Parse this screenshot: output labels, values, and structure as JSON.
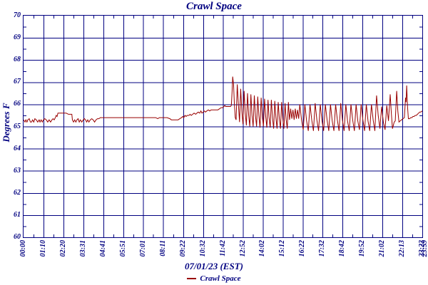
{
  "title": "Crawl Space",
  "colors": {
    "axis": "#000080",
    "series": "#990000",
    "background": "#ffffff"
  },
  "y_axis": {
    "label": "Degrees F",
    "min": 60,
    "max": 70,
    "tick_step": 1,
    "minor_tick_step": 0.5,
    "tick_labels": [
      "70",
      "69",
      "68",
      "67",
      "66",
      "65",
      "64",
      "63",
      "62",
      "61",
      "60"
    ]
  },
  "x_axis": {
    "title": "07/01/23 (EST)",
    "tick_labels": [
      "00:00",
      "01:10",
      "02:20",
      "03:31",
      "04:41",
      "05:51",
      "07:01",
      "08:11",
      "09:22",
      "10:32",
      "11:42",
      "12:52",
      "14:02",
      "15:12",
      "16:22",
      "17:32",
      "18:42",
      "19:52",
      "21:02",
      "22:13",
      "23:23"
    ],
    "end_overlap_label": "23:59",
    "minor_ticks": "midpoints"
  },
  "legend": {
    "items": [
      {
        "label": "Crawl Space",
        "color": "#990000"
      }
    ]
  },
  "chart_data": {
    "type": "line",
    "title": "Crawl Space",
    "xlabel": "07/01/23 (EST)",
    "ylabel": "Degrees F",
    "ylim": [
      60,
      70
    ],
    "x_unit": "minutes since 00:00",
    "y_unit": "degrees F",
    "grid": true,
    "legend_position": "bottom",
    "series": [
      {
        "name": "Crawl Space",
        "color": "#990000",
        "points": [
          [
            0,
            65.3
          ],
          [
            5,
            65.2
          ],
          [
            8,
            65.3
          ],
          [
            12,
            65.2
          ],
          [
            15,
            65.3
          ],
          [
            20,
            65.35
          ],
          [
            24,
            65.2
          ],
          [
            28,
            65.2
          ],
          [
            32,
            65.3
          ],
          [
            36,
            65.2
          ],
          [
            40,
            65.35
          ],
          [
            45,
            65.3
          ],
          [
            50,
            65.2
          ],
          [
            55,
            65.3
          ],
          [
            58,
            65.2
          ],
          [
            62,
            65.3
          ],
          [
            66,
            65.2
          ],
          [
            70,
            65.3
          ],
          [
            75,
            65.35
          ],
          [
            80,
            65.3
          ],
          [
            85,
            65.2
          ],
          [
            90,
            65.3
          ],
          [
            95,
            65.2
          ],
          [
            100,
            65.3
          ],
          [
            104,
            65.35
          ],
          [
            108,
            65.3
          ],
          [
            112,
            65.4
          ],
          [
            115,
            65.5
          ],
          [
            118,
            65.45
          ],
          [
            121,
            65.6
          ],
          [
            126,
            65.6
          ],
          [
            134,
            65.6
          ],
          [
            142,
            65.6
          ],
          [
            150,
            65.6
          ],
          [
            158,
            65.55
          ],
          [
            165,
            65.55
          ],
          [
            170,
            65.55
          ],
          [
            172,
            65.3
          ],
          [
            176,
            65.2
          ],
          [
            180,
            65.3
          ],
          [
            184,
            65.2
          ],
          [
            188,
            65.3
          ],
          [
            192,
            65.35
          ],
          [
            196,
            65.2
          ],
          [
            200,
            65.3
          ],
          [
            205,
            65.2
          ],
          [
            210,
            65.3
          ],
          [
            214,
            65.35
          ],
          [
            218,
            65.3
          ],
          [
            222,
            65.2
          ],
          [
            226,
            65.3
          ],
          [
            230,
            65.2
          ],
          [
            235,
            65.3
          ],
          [
            240,
            65.35
          ],
          [
            245,
            65.3
          ],
          [
            250,
            65.2
          ],
          [
            255,
            65.3
          ],
          [
            260,
            65.35
          ],
          [
            265,
            65.35
          ],
          [
            270,
            65.4
          ],
          [
            285,
            65.4
          ],
          [
            300,
            65.4
          ],
          [
            315,
            65.4
          ],
          [
            330,
            65.4
          ],
          [
            345,
            65.4
          ],
          [
            360,
            65.4
          ],
          [
            375,
            65.4
          ],
          [
            390,
            65.4
          ],
          [
            405,
            65.4
          ],
          [
            420,
            65.4
          ],
          [
            435,
            65.4
          ],
          [
            450,
            65.4
          ],
          [
            465,
            65.4
          ],
          [
            472,
            65.35
          ],
          [
            478,
            65.4
          ],
          [
            492,
            65.4
          ],
          [
            505,
            65.4
          ],
          [
            515,
            65.35
          ],
          [
            520,
            65.3
          ],
          [
            528,
            65.3
          ],
          [
            536,
            65.3
          ],
          [
            544,
            65.3
          ],
          [
            550,
            65.35
          ],
          [
            556,
            65.4
          ],
          [
            560,
            65.45
          ],
          [
            564,
            65.4
          ],
          [
            568,
            65.5
          ],
          [
            572,
            65.45
          ],
          [
            576,
            65.5
          ],
          [
            582,
            65.5
          ],
          [
            586,
            65.55
          ],
          [
            590,
            65.5
          ],
          [
            595,
            65.55
          ],
          [
            600,
            65.6
          ],
          [
            606,
            65.55
          ],
          [
            610,
            65.6
          ],
          [
            615,
            65.65
          ],
          [
            620,
            65.6
          ],
          [
            624,
            65.7
          ],
          [
            628,
            65.6
          ],
          [
            632,
            65.65
          ],
          [
            636,
            65.7
          ],
          [
            640,
            65.65
          ],
          [
            645,
            65.7
          ],
          [
            650,
            65.75
          ],
          [
            655,
            65.7
          ],
          [
            660,
            65.75
          ],
          [
            668,
            65.75
          ],
          [
            676,
            65.75
          ],
          [
            684,
            65.75
          ],
          [
            690,
            65.8
          ],
          [
            695,
            65.85
          ],
          [
            700,
            65.85
          ],
          [
            705,
            65.9
          ],
          [
            708,
            65.95
          ],
          [
            711,
            65.9
          ],
          [
            716,
            65.9
          ],
          [
            722,
            65.9
          ],
          [
            728,
            65.9
          ],
          [
            731,
            65.95
          ],
          [
            734,
            66.6
          ],
          [
            736,
            67.25
          ],
          [
            739,
            66.9
          ],
          [
            742,
            66.0
          ],
          [
            745,
            65.4
          ],
          [
            748,
            65.3
          ],
          [
            752,
            66.9
          ],
          [
            756,
            66.0
          ],
          [
            760,
            65.2
          ],
          [
            764,
            66.7
          ],
          [
            768,
            65.7
          ],
          [
            772,
            65.1
          ],
          [
            776,
            66.6
          ],
          [
            780,
            65.6
          ],
          [
            784,
            65.05
          ],
          [
            788,
            66.5
          ],
          [
            792,
            65.5
          ],
          [
            796,
            65.0
          ],
          [
            800,
            66.45
          ],
          [
            804,
            65.5
          ],
          [
            808,
            65.0
          ],
          [
            812,
            66.4
          ],
          [
            816,
            65.5
          ],
          [
            820,
            65.0
          ],
          [
            824,
            66.35
          ],
          [
            828,
            65.5
          ],
          [
            832,
            64.95
          ],
          [
            836,
            66.3
          ],
          [
            840,
            65.45
          ],
          [
            844,
            65.0
          ],
          [
            848,
            66.25
          ],
          [
            852,
            65.45
          ],
          [
            856,
            64.95
          ],
          [
            860,
            66.2
          ],
          [
            864,
            65.4
          ],
          [
            868,
            64.95
          ],
          [
            872,
            66.2
          ],
          [
            876,
            65.4
          ],
          [
            880,
            64.9
          ],
          [
            884,
            66.15
          ],
          [
            888,
            65.4
          ],
          [
            892,
            64.9
          ],
          [
            896,
            66.1
          ],
          [
            900,
            65.35
          ],
          [
            904,
            64.9
          ],
          [
            908,
            66.1
          ],
          [
            912,
            65.35
          ],
          [
            916,
            64.9
          ],
          [
            920,
            66.05
          ],
          [
            924,
            65.3
          ],
          [
            928,
            64.9
          ],
          [
            932,
            66.1
          ],
          [
            936,
            65.3
          ],
          [
            940,
            65.8
          ],
          [
            944,
            65.35
          ],
          [
            948,
            65.75
          ],
          [
            952,
            65.3
          ],
          [
            956,
            65.8
          ],
          [
            960,
            65.35
          ],
          [
            964,
            65.75
          ],
          [
            968,
            65.35
          ],
          [
            972,
            66.0
          ],
          [
            978,
            65.3
          ],
          [
            984,
            64.85
          ],
          [
            990,
            66.0
          ],
          [
            996,
            65.25
          ],
          [
            1002,
            64.8
          ],
          [
            1008,
            66.0
          ],
          [
            1014,
            65.3
          ],
          [
            1020,
            64.8
          ],
          [
            1026,
            66.05
          ],
          [
            1032,
            65.3
          ],
          [
            1038,
            64.8
          ],
          [
            1044,
            66.0
          ],
          [
            1050,
            65.25
          ],
          [
            1056,
            64.8
          ],
          [
            1062,
            66.0
          ],
          [
            1068,
            65.3
          ],
          [
            1074,
            64.8
          ],
          [
            1080,
            66.0
          ],
          [
            1086,
            65.25
          ],
          [
            1092,
            64.8
          ],
          [
            1098,
            66.0
          ],
          [
            1104,
            65.3
          ],
          [
            1110,
            64.8
          ],
          [
            1116,
            66.05
          ],
          [
            1122,
            65.3
          ],
          [
            1128,
            64.8
          ],
          [
            1134,
            66.0
          ],
          [
            1140,
            65.25
          ],
          [
            1146,
            64.8
          ],
          [
            1152,
            66.0
          ],
          [
            1158,
            65.3
          ],
          [
            1164,
            64.8
          ],
          [
            1170,
            66.0
          ],
          [
            1176,
            65.25
          ],
          [
            1182,
            64.85
          ],
          [
            1188,
            66.0
          ],
          [
            1194,
            65.3
          ],
          [
            1200,
            64.8
          ],
          [
            1206,
            66.0
          ],
          [
            1212,
            65.25
          ],
          [
            1218,
            64.8
          ],
          [
            1224,
            66.0
          ],
          [
            1230,
            65.3
          ],
          [
            1236,
            64.8
          ],
          [
            1242,
            66.4
          ],
          [
            1248,
            65.5
          ],
          [
            1254,
            64.9
          ],
          [
            1260,
            65.9
          ],
          [
            1266,
            65.2
          ],
          [
            1272,
            64.85
          ],
          [
            1278,
            65.95
          ],
          [
            1284,
            65.25
          ],
          [
            1290,
            66.45
          ],
          [
            1294,
            65.6
          ],
          [
            1298,
            64.9
          ],
          [
            1304,
            65.2
          ],
          [
            1308,
            65.25
          ],
          [
            1313,
            66.6
          ],
          [
            1317,
            65.7
          ],
          [
            1321,
            65.2
          ],
          [
            1325,
            65.25
          ],
          [
            1330,
            65.3
          ],
          [
            1335,
            65.35
          ],
          [
            1340,
            65.4
          ],
          [
            1344,
            66.3
          ],
          [
            1346,
            66.1
          ],
          [
            1348,
            66.85
          ],
          [
            1351,
            65.9
          ],
          [
            1354,
            65.35
          ],
          [
            1358,
            65.35
          ],
          [
            1362,
            65.4
          ],
          [
            1366,
            65.4
          ],
          [
            1370,
            65.45
          ],
          [
            1374,
            65.45
          ],
          [
            1378,
            65.5
          ],
          [
            1382,
            65.5
          ],
          [
            1386,
            65.55
          ],
          [
            1390,
            65.6
          ],
          [
            1394,
            65.65
          ],
          [
            1398,
            65.65
          ],
          [
            1403,
            65.7
          ]
        ]
      }
    ]
  }
}
